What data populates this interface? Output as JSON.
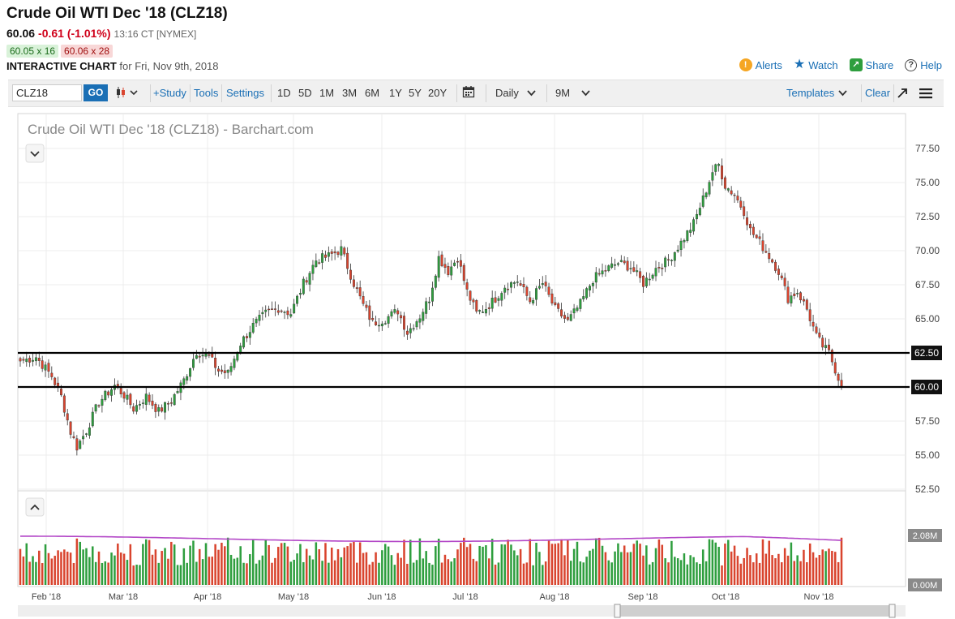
{
  "header": {
    "title": "Crude Oil WTI Dec '18 (CLZ18)",
    "last": "60.06",
    "change": "-0.61 (-1.01%)",
    "time": "13:16 CT [NYMEX]",
    "bid": "60.05 x 16",
    "ask": "60.06 x 28",
    "chart_label": "INTERACTIVE CHART",
    "chart_date": "for Fri, Nov 9th, 2018"
  },
  "actions": {
    "alerts": "Alerts",
    "watch": "Watch",
    "share": "Share",
    "help": "Help"
  },
  "toolbar": {
    "symbol": "CLZ18",
    "go": "GO",
    "study": "+Study",
    "tools": "Tools",
    "settings": "Settings",
    "ranges": [
      "1D",
      "5D",
      "1M",
      "3M",
      "6M",
      "1Y",
      "5Y",
      "20Y"
    ],
    "interval": "Daily",
    "period": "9M",
    "templates": "Templates",
    "clear": "Clear"
  },
  "colors": {
    "up": "#2e9e3e",
    "down": "#d9442e",
    "avg_line": "#b347c7",
    "accent": "#1a6fb5"
  },
  "icons": [
    "bar-type-icon",
    "calendar-icon",
    "alerts-icon",
    "watch-star-icon",
    "share-icon",
    "help-icon",
    "expand-arrow-icon",
    "menu-icon",
    "collapse-chevron-icon",
    "expand-chevron-icon"
  ],
  "chart_data": {
    "type": "candlestick",
    "title": "Crude Oil WTI Dec '18 (CLZ18) - Barchart.com",
    "y_ticks": [
      "77.50",
      "75.00",
      "72.50",
      "70.00",
      "67.50",
      "65.00",
      "62.50",
      "60.00",
      "57.50",
      "55.00",
      "52.50"
    ],
    "y_values": [
      77.5,
      75,
      72.5,
      70,
      67.5,
      65,
      62.5,
      60,
      57.5,
      55,
      52.5
    ],
    "ylim": [
      52.5,
      77.5
    ],
    "x_ticks": [
      "Feb '18",
      "Mar '18",
      "Apr '18",
      "May '18",
      "Jun '18",
      "Jul '18",
      "Aug '18",
      "Sep '18",
      "Oct '18",
      "Nov '18"
    ],
    "horizontal_lines": [
      {
        "label": "62.50",
        "value": 62.5
      },
      {
        "label": "60.00",
        "value": 60.0
      }
    ],
    "close_anchors": [
      [
        0,
        61.9
      ],
      [
        5,
        62.2
      ],
      [
        10,
        60.8
      ],
      [
        13,
        59.3
      ],
      [
        16,
        56.7
      ],
      [
        18,
        55.6
      ],
      [
        21,
        56.8
      ],
      [
        25,
        58.9
      ],
      [
        30,
        60.1
      ],
      [
        33,
        59.4
      ],
      [
        36,
        58.4
      ],
      [
        40,
        59.3
      ],
      [
        44,
        58.2
      ],
      [
        48,
        59.0
      ],
      [
        52,
        60.5
      ],
      [
        56,
        62.6
      ],
      [
        60,
        62.2
      ],
      [
        63,
        61.2
      ],
      [
        66,
        61.0
      ],
      [
        70,
        63.2
      ],
      [
        74,
        64.5
      ],
      [
        78,
        65.4
      ],
      [
        82,
        65.8
      ],
      [
        86,
        65.4
      ],
      [
        90,
        67.6
      ],
      [
        94,
        69.3
      ],
      [
        98,
        69.6
      ],
      [
        102,
        70.1
      ],
      [
        106,
        67.6
      ],
      [
        109,
        66.0
      ],
      [
        112,
        64.7
      ],
      [
        116,
        65.0
      ],
      [
        120,
        65.6
      ],
      [
        123,
        64.0
      ],
      [
        127,
        65.2
      ],
      [
        130,
        66.5
      ],
      [
        133,
        69.5
      ],
      [
        136,
        68.5
      ],
      [
        139,
        69.5
      ],
      [
        142,
        67.0
      ],
      [
        145,
        65.4
      ],
      [
        148,
        65.8
      ],
      [
        151,
        66.5
      ],
      [
        154,
        67.4
      ],
      [
        158,
        67.8
      ],
      [
        162,
        66.3
      ],
      [
        166,
        67.6
      ],
      [
        170,
        65.7
      ],
      [
        174,
        64.8
      ],
      [
        178,
        66.1
      ],
      [
        182,
        67.9
      ],
      [
        186,
        68.6
      ],
      [
        190,
        69.1
      ],
      [
        194,
        68.8
      ],
      [
        198,
        67.6
      ],
      [
        202,
        68.7
      ],
      [
        206,
        69.3
      ],
      [
        210,
        70.6
      ],
      [
        214,
        72.0
      ],
      [
        217,
        73.8
      ],
      [
        220,
        75.8
      ],
      [
        222,
        76.3
      ],
      [
        224,
        74.8
      ],
      [
        227,
        74.1
      ],
      [
        230,
        72.9
      ],
      [
        232,
        71.5
      ],
      [
        235,
        70.6
      ],
      [
        238,
        69.6
      ],
      [
        241,
        68.5
      ],
      [
        244,
        66.5
      ],
      [
        247,
        67.0
      ],
      [
        250,
        65.7
      ],
      [
        253,
        63.7
      ],
      [
        255,
        63.0
      ],
      [
        257,
        62.5
      ],
      [
        259,
        61.3
      ],
      [
        261,
        60.06
      ]
    ],
    "n_bars": 262,
    "avg_volume_label": "2.08M",
    "volume_ticks": [
      "2.08M",
      "0.00M"
    ],
    "volume_range": [
      0,
      2.08
    ]
  }
}
